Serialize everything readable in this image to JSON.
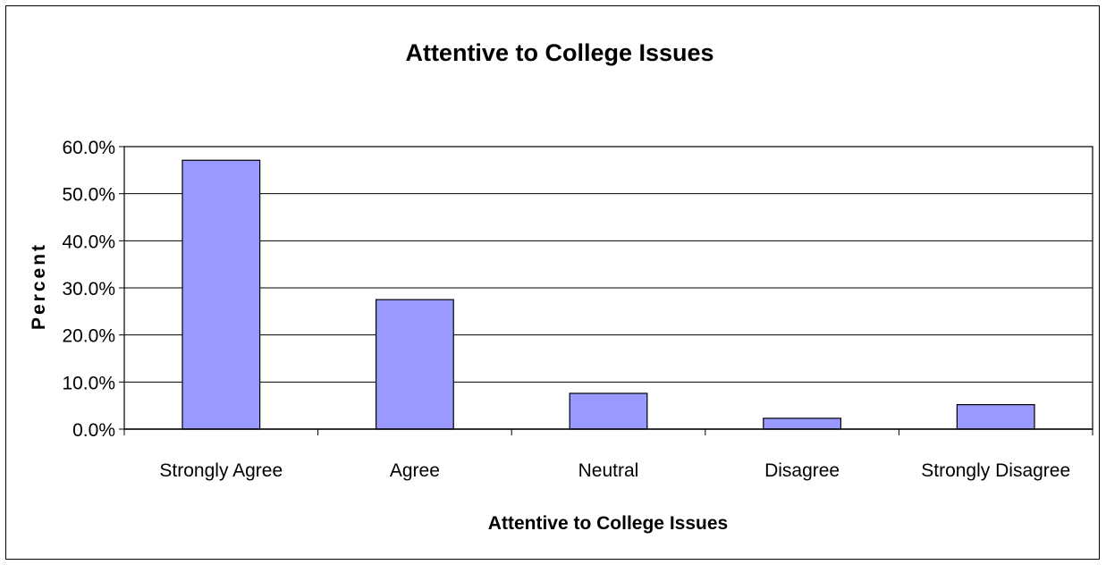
{
  "chart_data": {
    "type": "bar",
    "title": "Attentive to College Issues",
    "xlabel": "Attentive to College Issues",
    "ylabel": "Percent",
    "categories": [
      "Strongly Agree",
      "Agree",
      "Neutral",
      "Disagree",
      "Strongly Disagree"
    ],
    "values": [
      0.571,
      0.275,
      0.076,
      0.023,
      0.052
    ],
    "ylim": [
      0,
      0.6
    ],
    "yticks": [
      0,
      0.1,
      0.2,
      0.3,
      0.4,
      0.5,
      0.6
    ],
    "ytick_labels": [
      "0.0%",
      "10.0%",
      "20.0%",
      "30.0%",
      "40.0%",
      "50.0%",
      "60.0%"
    ],
    "grid": true,
    "bar_color": "#9999ff",
    "legend": "none"
  }
}
